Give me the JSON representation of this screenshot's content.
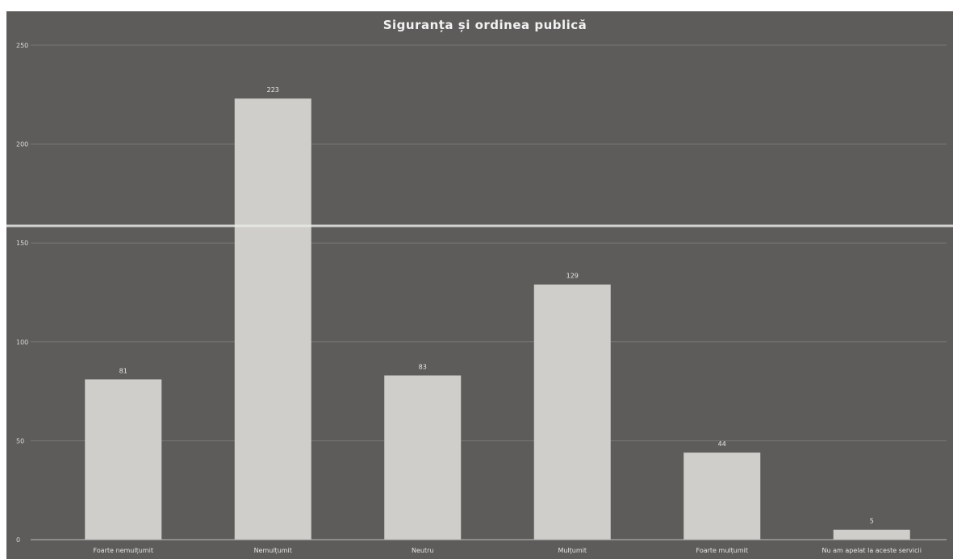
{
  "chart_data": {
    "type": "bar",
    "title": "Siguranța și ordinea publică",
    "categories": [
      "Foarte nemulțumit",
      "Nemulțumit",
      "Neutru",
      "Mulțumit",
      "Foarte mulțumit",
      "Nu am apelat la aceste servicii"
    ],
    "values": [
      81,
      223,
      83,
      129,
      44,
      5
    ],
    "data_labels": [
      "81",
      "223",
      "83",
      "129",
      "44",
      "5"
    ],
    "yticks": [
      0,
      50,
      100,
      150,
      200,
      250
    ],
    "ylim": [
      0,
      250
    ],
    "xlabel": "",
    "ylabel": "",
    "grid": true,
    "legend": "none",
    "colors": {
      "background": "#5d5c5a",
      "bar": "#cfcecb",
      "grid": "#7a7977",
      "text": "#e6e6e6"
    }
  }
}
